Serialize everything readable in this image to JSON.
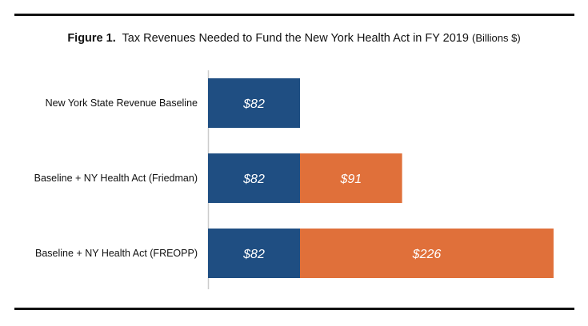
{
  "chart_data": {
    "type": "bar",
    "orientation": "horizontal",
    "stacked": true,
    "title_prefix": "Figure 1.",
    "title": "Tax Revenues Needed to Fund the New York Health Act in FY 2019",
    "unit": "(Billions $)",
    "categories": [
      "New York State Revenue Baseline",
      "Baseline + NY Health Act (Friedman)",
      "Baseline + NY Health Act (FREOPP)"
    ],
    "series": [
      {
        "name": "Baseline",
        "color": "#1f4e82",
        "values": [
          82,
          82,
          82
        ],
        "labels": [
          "$82",
          "$82",
          "$82"
        ]
      },
      {
        "name": "NY Health Act",
        "color": "#e0703a",
        "values": [
          0,
          91,
          226
        ],
        "labels": [
          "",
          "$91",
          "$226"
        ]
      }
    ],
    "xlim": [
      0,
      310
    ],
    "grid": false,
    "legend": "none"
  }
}
